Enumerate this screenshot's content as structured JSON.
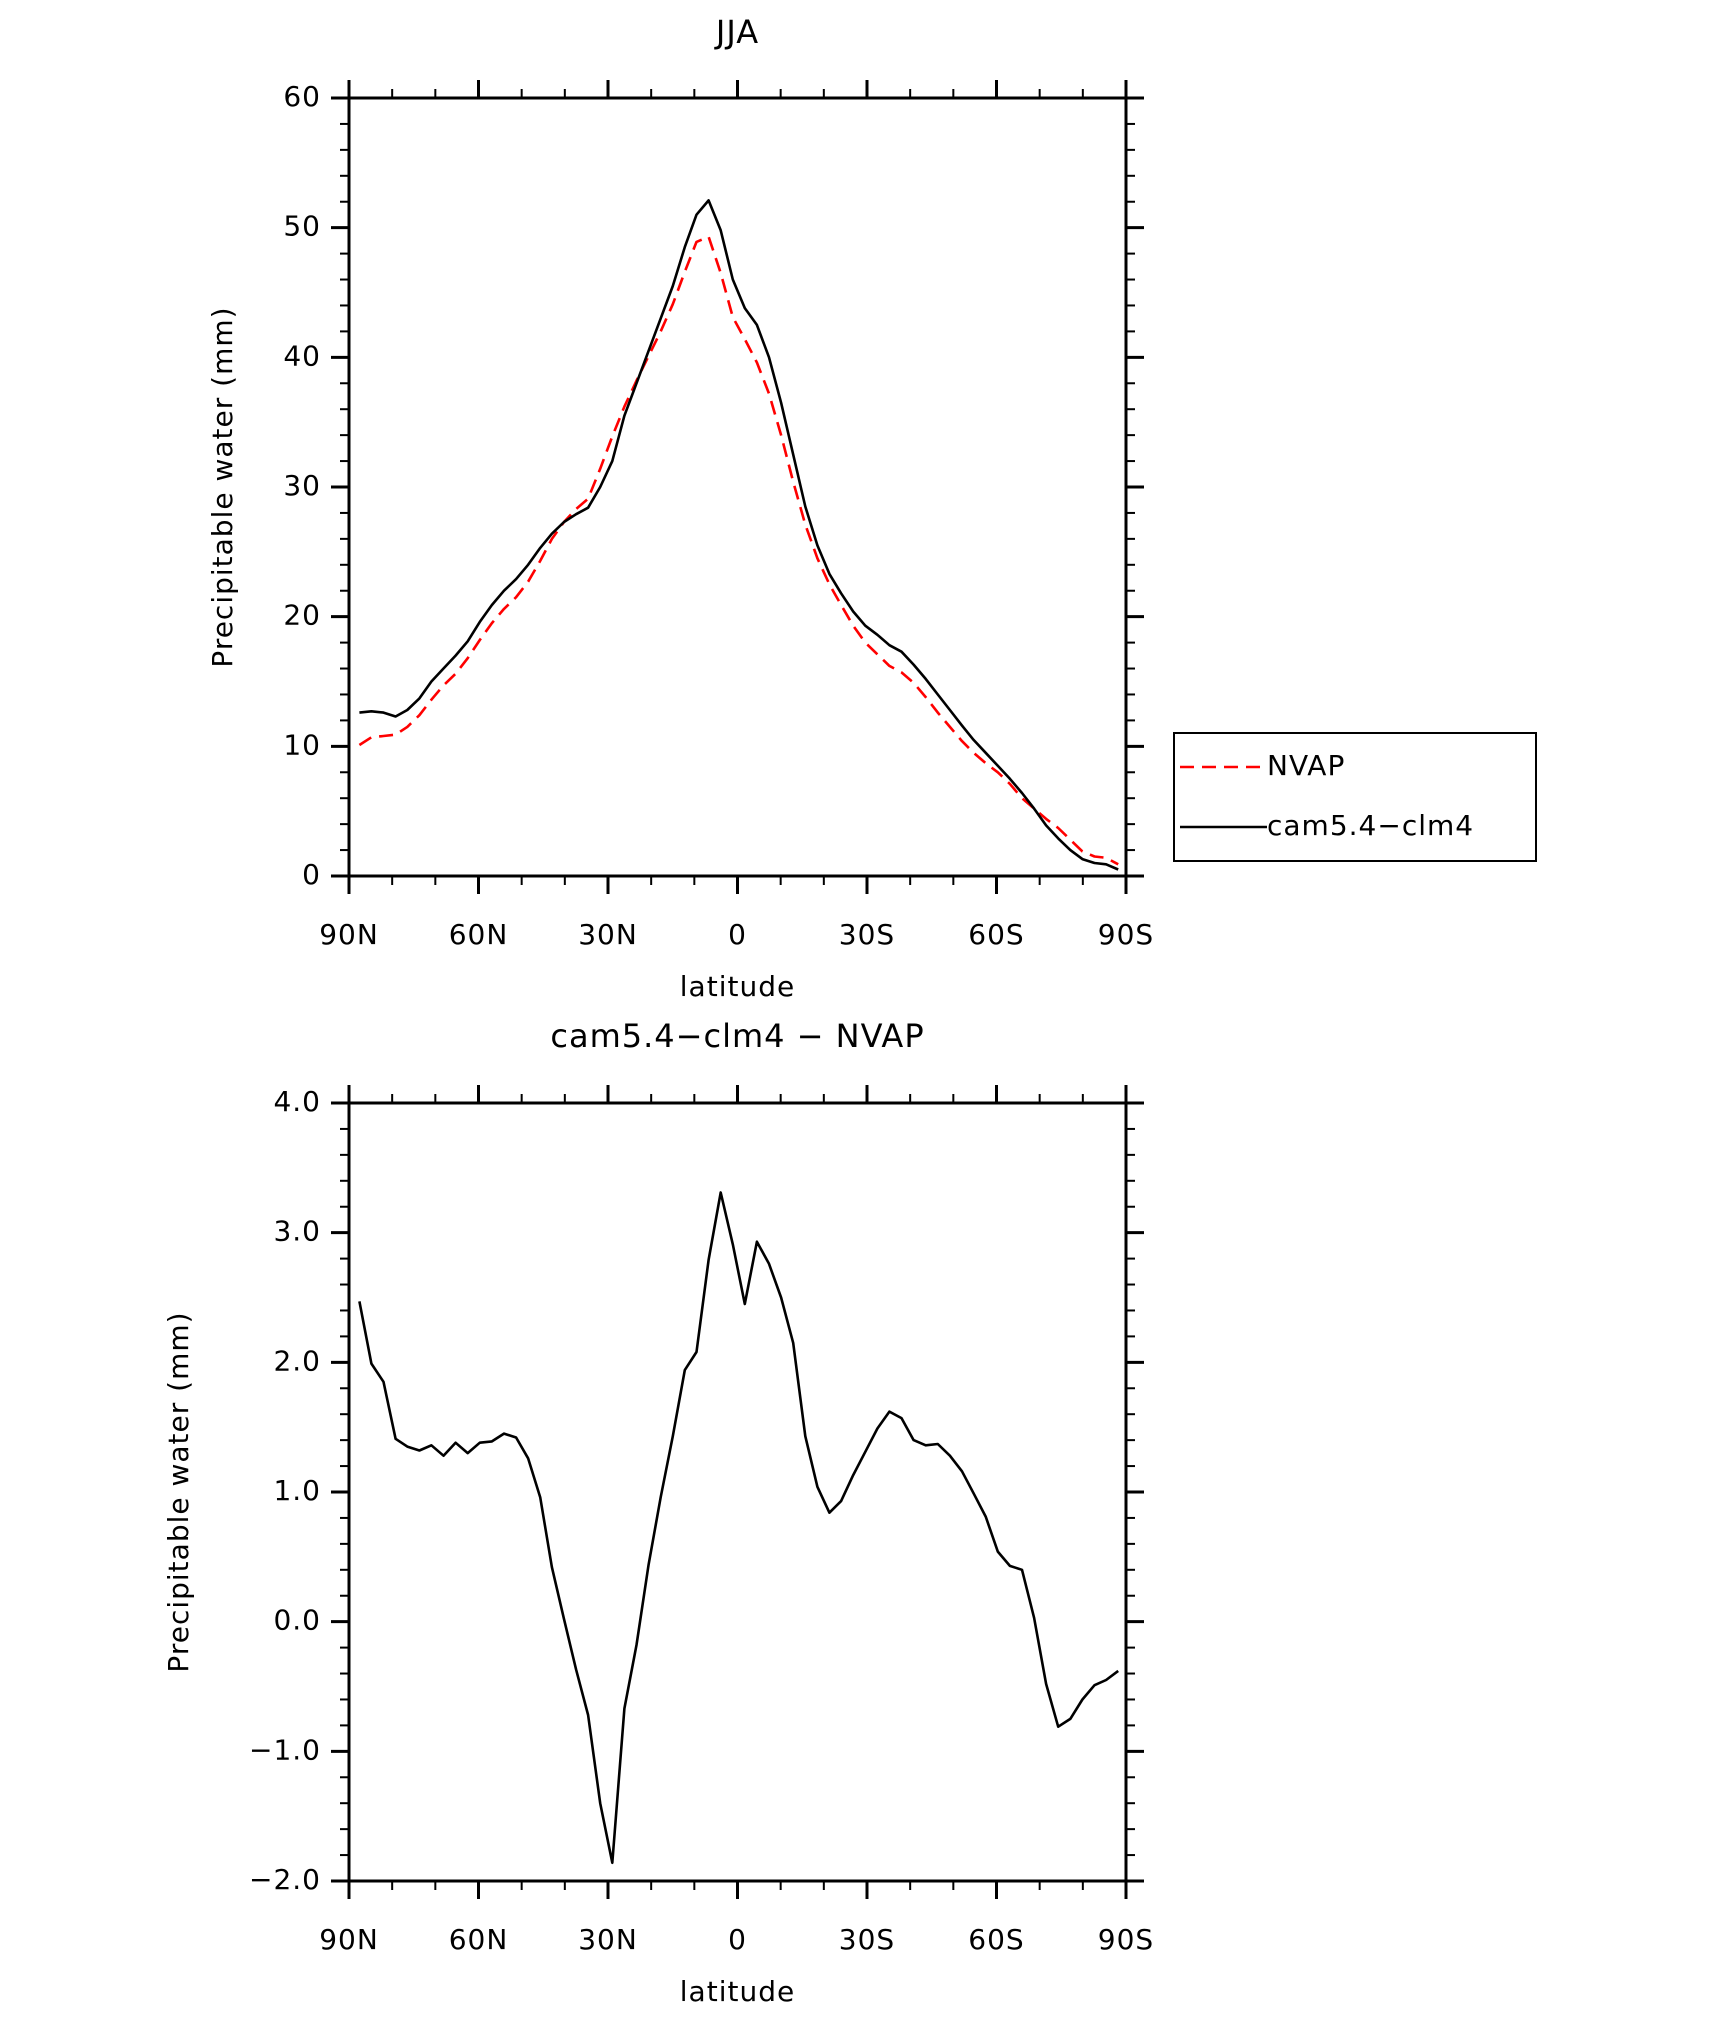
{
  "chart_data": [
    {
      "type": "line",
      "title": "JJA",
      "x_label": "latitude",
      "y_label": "Precipitable water (mm)",
      "x": [
        87.6,
        84.8,
        82.0,
        79.2,
        76.5,
        73.7,
        70.9,
        68.1,
        65.3,
        62.5,
        59.7,
        56.9,
        54.1,
        51.3,
        48.5,
        45.7,
        43.0,
        40.2,
        37.4,
        34.6,
        31.8,
        29.0,
        26.2,
        23.4,
        20.6,
        17.8,
        15.0,
        12.2,
        9.5,
        6.7,
        3.9,
        1.1,
        -1.7,
        -4.5,
        -7.3,
        -10.1,
        -12.9,
        -15.7,
        -18.5,
        -21.3,
        -24.0,
        -26.8,
        -29.6,
        -32.4,
        -35.2,
        -38.0,
        -40.8,
        -43.6,
        -46.4,
        -49.2,
        -52.0,
        -54.7,
        -57.5,
        -60.3,
        -63.1,
        -65.9,
        -68.7,
        -71.5,
        -74.3,
        -77.1,
        -79.9,
        -82.7,
        -85.4,
        -88.2
      ],
      "series": [
        {
          "name": "NVAP",
          "color": "#ff0000",
          "dash": true,
          "values": [
            10.1,
            10.7,
            10.8,
            10.9,
            11.5,
            12.4,
            13.6,
            14.7,
            15.6,
            16.8,
            18.2,
            19.5,
            20.6,
            21.5,
            22.7,
            24.3,
            26.0,
            27.3,
            28.3,
            29.1,
            31.4,
            33.9,
            36.2,
            38.2,
            40.1,
            42.0,
            44.1,
            46.6,
            48.9,
            49.3,
            46.5,
            43.1,
            41.4,
            39.6,
            37.2,
            34.0,
            30.4,
            27.1,
            24.5,
            22.5,
            20.9,
            19.3,
            18.0,
            17.1,
            16.2,
            15.7,
            14.9,
            13.8,
            12.6,
            11.5,
            10.4,
            9.5,
            8.7,
            8.0,
            7.1,
            6.0,
            5.2,
            4.4,
            3.7,
            2.8,
            1.9,
            1.5,
            1.4,
            0.9
          ]
        },
        {
          "name": "cam5.4−clm4",
          "color": "#000000",
          "dash": false,
          "values": [
            12.6,
            12.7,
            12.6,
            12.3,
            12.8,
            13.7,
            15.0,
            16.0,
            17.0,
            18.1,
            19.6,
            20.9,
            22.0,
            22.9,
            24.0,
            25.3,
            26.4,
            27.3,
            27.9,
            28.4,
            30.0,
            32.0,
            35.5,
            38.0,
            40.5,
            43.0,
            45.5,
            48.5,
            51.0,
            52.1,
            49.8,
            46.0,
            43.8,
            42.5,
            40.0,
            36.5,
            32.5,
            28.5,
            25.5,
            23.3,
            21.8,
            20.4,
            19.3,
            18.6,
            17.8,
            17.3,
            16.3,
            15.2,
            14.0,
            12.8,
            11.6,
            10.5,
            9.5,
            8.5,
            7.5,
            6.4,
            5.2,
            3.9,
            2.9,
            2.0,
            1.3,
            1.0,
            0.9,
            0.5
          ]
        }
      ],
      "xlim": [
        90,
        -90
      ],
      "xticks": [
        {
          "value": 90,
          "label": "90N"
        },
        {
          "value": 60,
          "label": "60N"
        },
        {
          "value": 30,
          "label": "30N"
        },
        0,
        {
          "value": -30,
          "label": "30S"
        },
        {
          "value": -60,
          "label": "60S"
        },
        {
          "value": -90,
          "label": "90S"
        }
      ],
      "ylim": [
        0,
        60
      ],
      "yticks": [
        0,
        10,
        20,
        30,
        40,
        50,
        60
      ],
      "legend": "right"
    },
    {
      "type": "line",
      "title": "cam5.4−clm4 − NVAP",
      "x_label": "latitude",
      "y_label": "Precipitable water (mm)",
      "x": [
        87.6,
        84.8,
        82.0,
        79.2,
        76.5,
        73.7,
        70.9,
        68.1,
        65.3,
        62.5,
        59.7,
        56.9,
        54.1,
        51.3,
        48.5,
        45.7,
        43.0,
        40.2,
        37.4,
        34.6,
        31.8,
        29.0,
        26.2,
        23.4,
        20.6,
        17.8,
        15.0,
        12.2,
        9.5,
        6.7,
        3.9,
        1.1,
        -1.7,
        -4.5,
        -7.3,
        -10.1,
        -12.9,
        -15.7,
        -18.5,
        -21.3,
        -24.0,
        -26.8,
        -29.6,
        -32.4,
        -35.2,
        -38.0,
        -40.8,
        -43.6,
        -46.4,
        -49.2,
        -52.0,
        -54.7,
        -57.5,
        -60.3,
        -63.1,
        -65.9,
        -68.7,
        -71.5,
        -74.3,
        -77.1,
        -79.9,
        -82.7,
        -85.4,
        -88.2
      ],
      "color": "#000000",
      "values": [
        2.47,
        1.99,
        1.85,
        1.41,
        1.35,
        1.32,
        1.36,
        1.28,
        1.38,
        1.3,
        1.38,
        1.39,
        1.45,
        1.42,
        1.26,
        0.96,
        0.42,
        0.02,
        -0.37,
        -0.72,
        -1.4,
        -1.86,
        -0.67,
        -0.18,
        0.44,
        0.96,
        1.43,
        1.94,
        2.08,
        2.79,
        3.31,
        2.91,
        2.45,
        2.93,
        2.76,
        2.5,
        2.15,
        1.43,
        1.04,
        0.84,
        0.93,
        1.13,
        1.31,
        1.49,
        1.62,
        1.57,
        1.4,
        1.36,
        1.37,
        1.28,
        1.16,
        0.99,
        0.81,
        0.54,
        0.43,
        0.4,
        0.03,
        -0.48,
        -0.81,
        -0.75,
        -0.6,
        -0.49,
        -0.45,
        -0.38
      ],
      "xlim": [
        90,
        -90
      ],
      "xticks": [
        {
          "value": 90,
          "label": "90N"
        },
        {
          "value": 60,
          "label": "60N"
        },
        {
          "value": 30,
          "label": "30N"
        },
        0,
        {
          "value": -30,
          "label": "30S"
        },
        {
          "value": -60,
          "label": "60S"
        },
        {
          "value": -90,
          "label": "90S"
        }
      ],
      "ylim": [
        -2,
        4
      ],
      "yticks": [
        {
          "value": -2,
          "label": "−2.0"
        },
        {
          "value": -1,
          "label": "−1.0"
        },
        {
          "value": 0,
          "label": "0.0"
        },
        {
          "value": 1,
          "label": "1.0"
        },
        {
          "value": 2,
          "label": "2.0"
        },
        {
          "value": 3,
          "label": "3.0"
        },
        {
          "value": 4,
          "label": "4.0"
        }
      ]
    }
  ]
}
